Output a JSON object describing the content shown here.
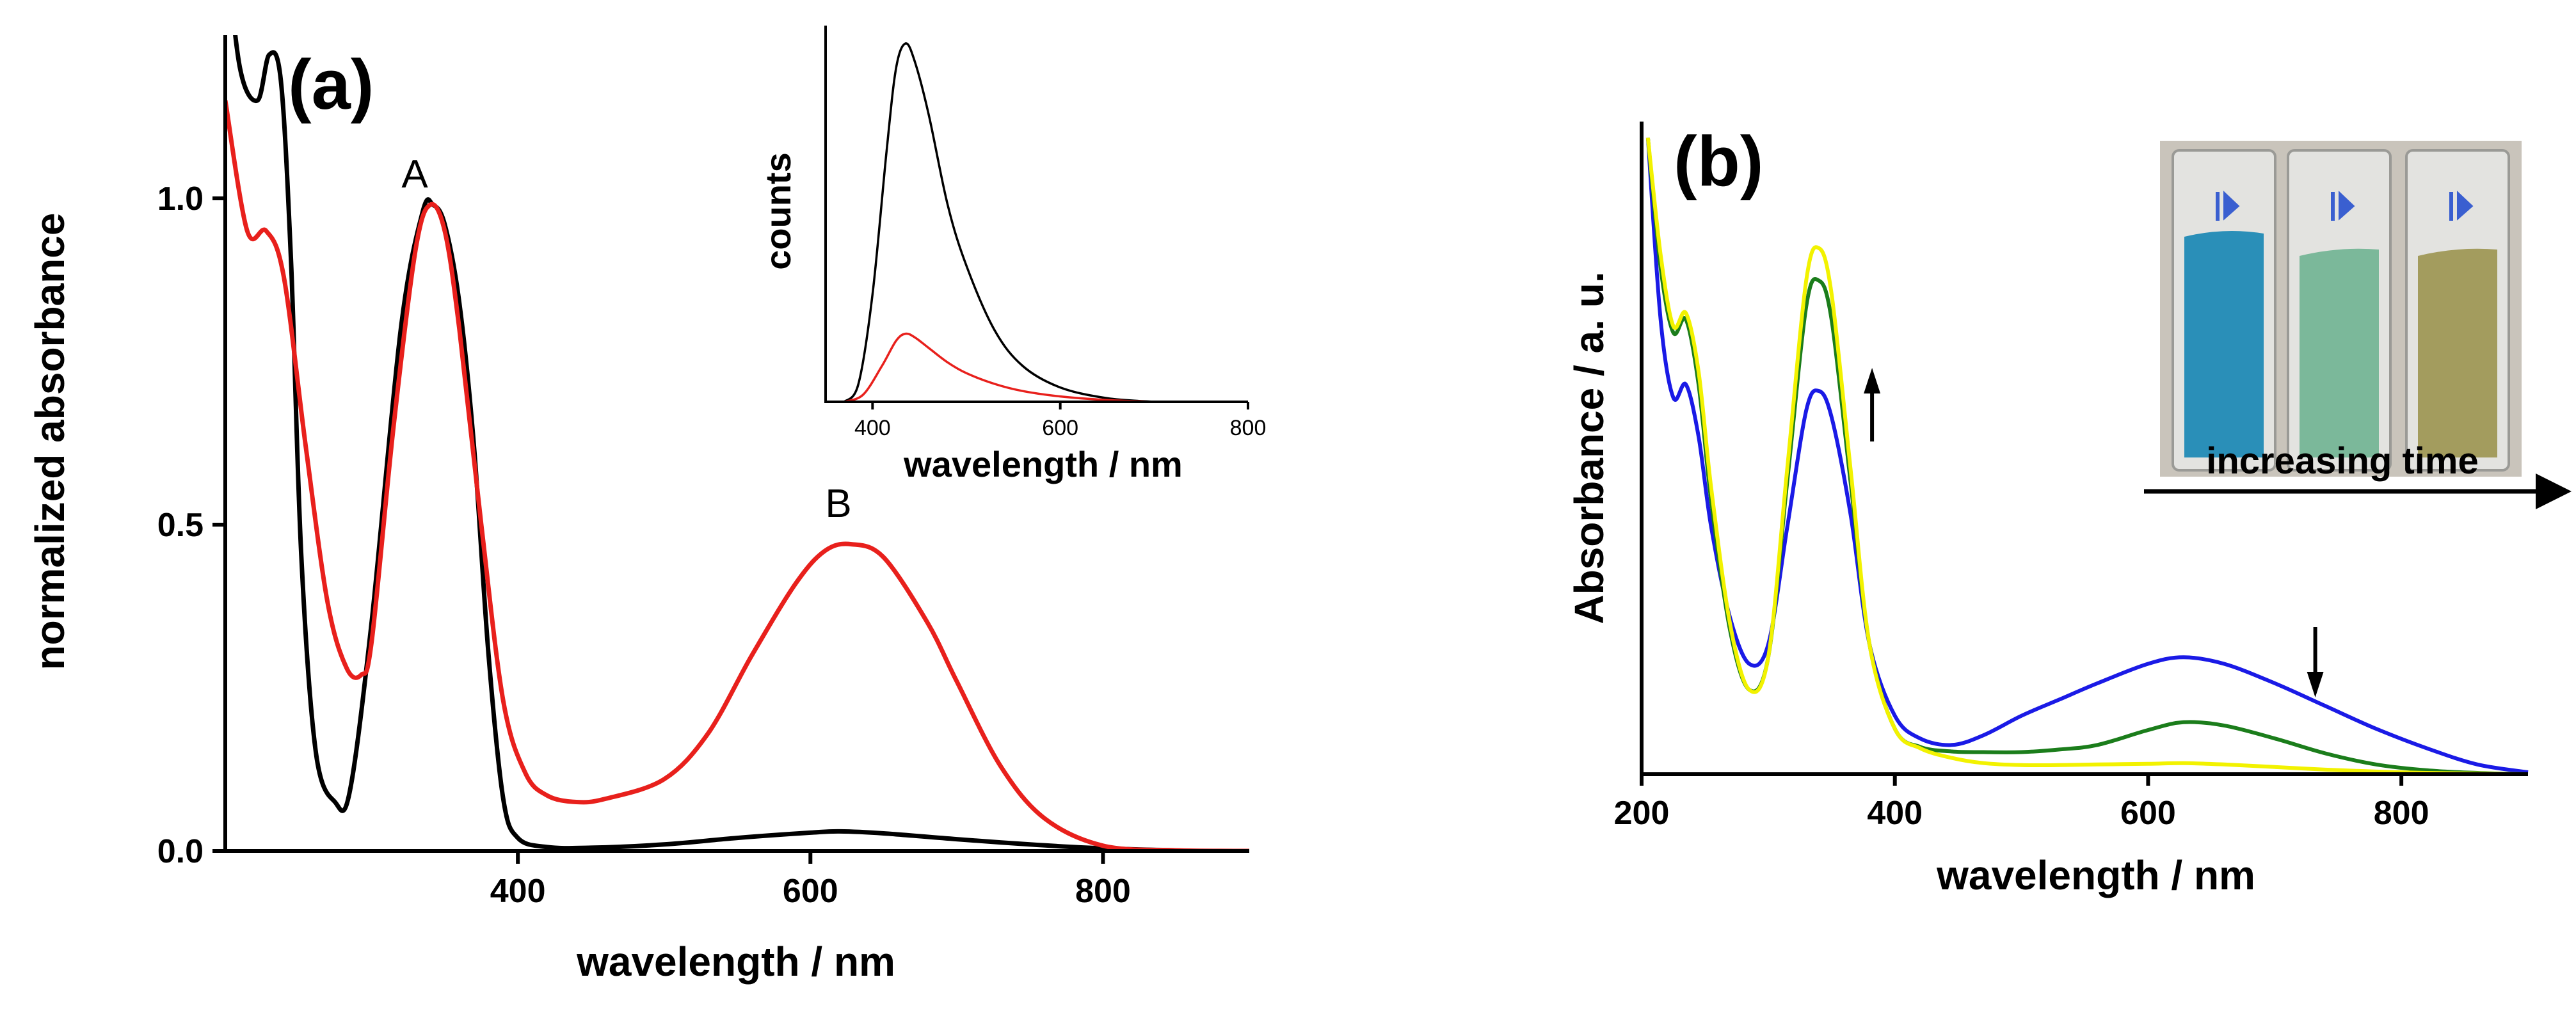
{
  "chart_data": [
    {
      "panel": "(a)",
      "type": "line",
      "xlabel": "wavelength / nm",
      "ylabel": "normalized absorbance",
      "xlim": [
        200,
        900
      ],
      "ylim": [
        0,
        1.25
      ],
      "x_ticks": [
        400,
        600,
        800
      ],
      "y_ticks": [
        0.0,
        0.5,
        1.0
      ],
      "y_tick_labels": [
        "0.0",
        "0.5",
        "1.0"
      ],
      "annotations": [
        {
          "text": "A",
          "x": 340,
          "y": 1.0
        },
        {
          "text": "B",
          "x": 628,
          "y": 0.47
        }
      ],
      "series": [
        {
          "name": "black",
          "color": "#000000",
          "x": [
            200,
            210,
            222,
            230,
            238,
            245,
            252,
            262,
            275,
            285,
            300,
            320,
            335,
            342,
            350,
            360,
            370,
            380,
            390,
            400,
            420,
            450,
            500,
            550,
            600,
            620,
            650,
            700,
            750,
            800,
            850
          ],
          "y": [
            1.4,
            1.2,
            1.15,
            1.22,
            1.18,
            0.9,
            0.45,
            0.15,
            0.075,
            0.09,
            0.35,
            0.8,
            0.98,
            0.99,
            0.96,
            0.84,
            0.62,
            0.3,
            0.08,
            0.02,
            0.006,
            0.005,
            0.01,
            0.02,
            0.028,
            0.03,
            0.027,
            0.018,
            0.01,
            0.004,
            0.001
          ]
        },
        {
          "name": "red",
          "color": "#e8201c",
          "x": [
            200,
            215,
            228,
            240,
            255,
            270,
            283,
            293,
            300,
            315,
            330,
            340,
            350,
            360,
            375,
            390,
            405,
            420,
            440,
            460,
            500,
            530,
            560,
            590,
            610,
            628,
            650,
            680,
            700,
            730,
            760,
            800,
            850,
            900
          ],
          "y": [
            1.15,
            0.95,
            0.95,
            0.88,
            0.62,
            0.38,
            0.28,
            0.27,
            0.32,
            0.65,
            0.92,
            0.99,
            0.95,
            0.8,
            0.5,
            0.23,
            0.12,
            0.085,
            0.075,
            0.08,
            0.11,
            0.18,
            0.3,
            0.41,
            0.46,
            0.47,
            0.45,
            0.35,
            0.26,
            0.13,
            0.05,
            0.008,
            0.001,
            0.0
          ]
        }
      ],
      "inset": {
        "type": "line",
        "xlabel": "wavelength / nm",
        "ylabel": "counts",
        "xlim": [
          350,
          800
        ],
        "ylim": [
          0,
          1.05
        ],
        "x_ticks": [
          400,
          600,
          800
        ],
        "series": [
          {
            "name": "black",
            "color": "#000000",
            "x": [
              370,
              385,
              400,
              415,
              425,
              435,
              445,
              460,
              480,
              500,
              530,
              560,
              600,
              650,
              700
            ],
            "y": [
              0.0,
              0.05,
              0.3,
              0.7,
              0.93,
              1.0,
              0.95,
              0.8,
              0.55,
              0.38,
              0.2,
              0.1,
              0.04,
              0.01,
              0.0
            ]
          },
          {
            "name": "red",
            "color": "#e8201c",
            "x": [
              370,
              390,
              410,
              425,
              435,
              445,
              460,
              480,
              500,
              530,
              560,
              600,
              650,
              700
            ],
            "y": [
              0.0,
              0.02,
              0.1,
              0.17,
              0.19,
              0.18,
              0.15,
              0.11,
              0.08,
              0.05,
              0.03,
              0.015,
              0.005,
              0.0
            ]
          }
        ]
      }
    },
    {
      "panel": "(b)",
      "type": "line",
      "xlabel": "wavelength / nm",
      "ylabel": "Absorbance / a. u.",
      "xlim": [
        200,
        900
      ],
      "ylim": [
        0,
        1.0
      ],
      "x_ticks": [
        200,
        400,
        600,
        800
      ],
      "caption": "increasing time",
      "arrows": [
        {
          "direction": "up",
          "x": 382
        },
        {
          "direction": "down",
          "x": 732
        }
      ],
      "series": [
        {
          "name": "blue",
          "color": "#1a1ae6",
          "x": [
            205,
            215,
            225,
            235,
            245,
            255,
            270,
            285,
            300,
            315,
            330,
            340,
            350,
            365,
            380,
            400,
            420,
            445,
            470,
            500,
            530,
            560,
            600,
            628,
            660,
            700,
            740,
            780,
            820,
            860,
            900
          ],
          "y": [
            0.98,
            0.7,
            0.58,
            0.6,
            0.52,
            0.38,
            0.24,
            0.17,
            0.2,
            0.38,
            0.56,
            0.59,
            0.55,
            0.4,
            0.2,
            0.09,
            0.055,
            0.045,
            0.06,
            0.09,
            0.115,
            0.14,
            0.17,
            0.18,
            0.17,
            0.14,
            0.105,
            0.07,
            0.04,
            0.015,
            0.003
          ]
        },
        {
          "name": "green",
          "color": "#1b7d1b",
          "x": [
            205,
            215,
            225,
            235,
            245,
            255,
            270,
            285,
            300,
            315,
            330,
            340,
            350,
            365,
            380,
            400,
            420,
            445,
            470,
            500,
            530,
            560,
            600,
            628,
            660,
            700,
            740,
            780,
            820,
            860,
            900
          ],
          "y": [
            0.98,
            0.78,
            0.68,
            0.7,
            0.6,
            0.42,
            0.22,
            0.13,
            0.18,
            0.45,
            0.72,
            0.76,
            0.7,
            0.45,
            0.2,
            0.07,
            0.042,
            0.035,
            0.034,
            0.034,
            0.038,
            0.045,
            0.068,
            0.08,
            0.075,
            0.055,
            0.032,
            0.015,
            0.006,
            0.002,
            0.0
          ]
        },
        {
          "name": "yellow",
          "color": "#f2f200",
          "x": [
            205,
            215,
            225,
            235,
            245,
            255,
            270,
            285,
            300,
            315,
            330,
            340,
            350,
            365,
            380,
            400,
            420,
            445,
            470,
            500,
            530,
            560,
            600,
            628,
            660,
            700,
            740,
            780,
            820,
            860,
            900
          ],
          "y": [
            0.98,
            0.8,
            0.69,
            0.71,
            0.62,
            0.44,
            0.23,
            0.13,
            0.18,
            0.47,
            0.76,
            0.81,
            0.74,
            0.47,
            0.2,
            0.07,
            0.04,
            0.025,
            0.017,
            0.014,
            0.014,
            0.015,
            0.016,
            0.017,
            0.015,
            0.011,
            0.007,
            0.004,
            0.002,
            0.001,
            0.0
          ]
        }
      ]
    }
  ],
  "photo": {
    "colors": [
      "#2a8fb8",
      "#7bb89a",
      "#a39c5e"
    ]
  }
}
